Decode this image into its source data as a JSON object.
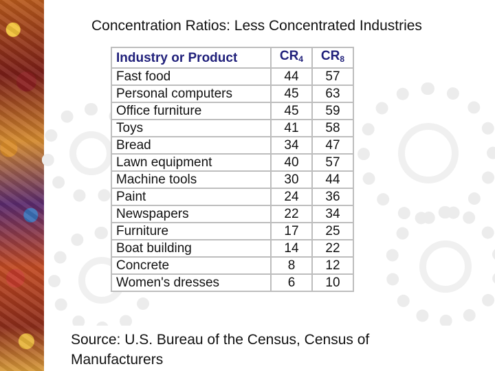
{
  "slide": {
    "title": "Concentration Ratios: Less Concentrated Industries",
    "source": "Source: U.S. Bureau of the Census, Census of Manufacturers"
  },
  "table": {
    "header": {
      "industry": "Industry or Product",
      "cr4_main": "CR",
      "cr4_sub": "4",
      "cr8_main": "CR",
      "cr8_sub": "8"
    },
    "rows": [
      {
        "industry": "Fast food",
        "cr4": "44",
        "cr8": "57"
      },
      {
        "industry": "Personal computers",
        "cr4": "45",
        "cr8": "63"
      },
      {
        "industry": "Office furniture",
        "cr4": "45",
        "cr8": "59"
      },
      {
        "industry": "Toys",
        "cr4": "41",
        "cr8": "58"
      },
      {
        "industry": "Bread",
        "cr4": "34",
        "cr8": "47"
      },
      {
        "industry": "Lawn equipment",
        "cr4": "40",
        "cr8": "57"
      },
      {
        "industry": "Machine tools",
        "cr4": "30",
        "cr8": "44"
      },
      {
        "industry": "Paint",
        "cr4": "24",
        "cr8": "36"
      },
      {
        "industry": "Newspapers",
        "cr4": "22",
        "cr8": "34"
      },
      {
        "industry": "Furniture",
        "cr4": "17",
        "cr8": "25"
      },
      {
        "industry": "Boat building",
        "cr4": "14",
        "cr8": "22"
      },
      {
        "industry": "Concrete",
        "cr4": "8",
        "cr8": "12"
      },
      {
        "industry": "Women's dresses",
        "cr4": "6",
        "cr8": "10"
      }
    ]
  }
}
